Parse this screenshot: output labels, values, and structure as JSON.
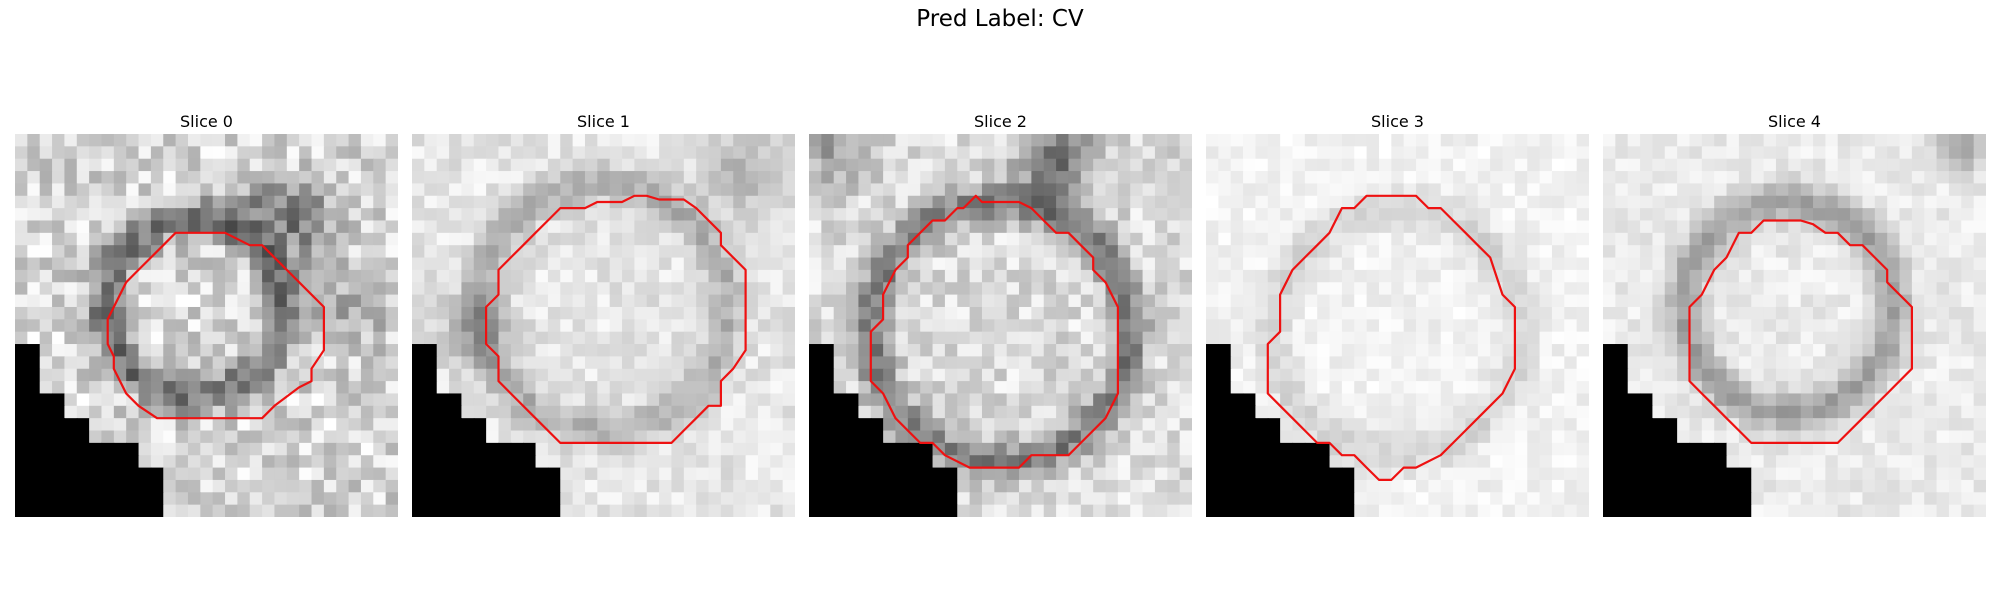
{
  "figure": {
    "suptitle": "Pred Label: CV"
  },
  "colors": {
    "contour": "#ee1111",
    "background": "#ffffff"
  },
  "panels": [
    {
      "title": "Slice 0"
    },
    {
      "title": "Slice 1"
    },
    {
      "title": "Slice 2"
    },
    {
      "title": "Slice 3"
    },
    {
      "title": "Slice 4"
    }
  ]
}
